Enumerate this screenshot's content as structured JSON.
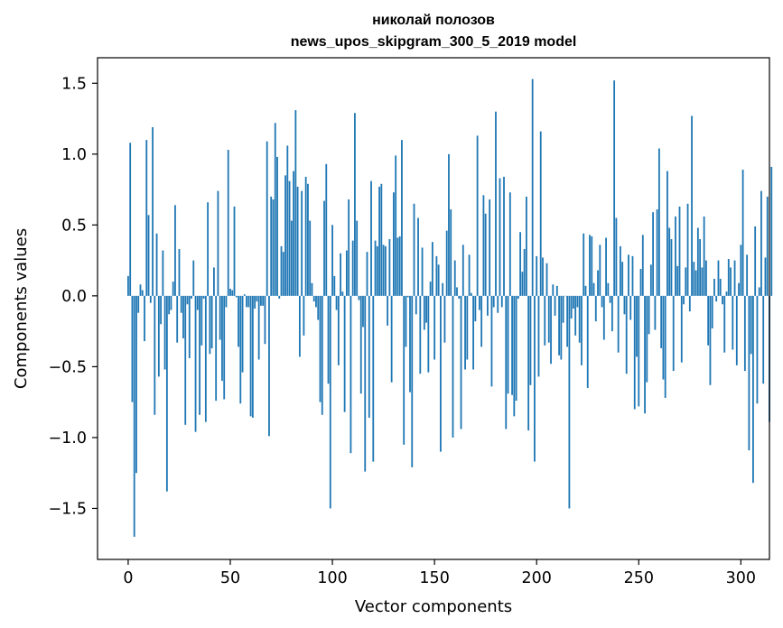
{
  "chart_data": {
    "type": "bar",
    "title": "николай полозов",
    "subtitle": "news_upos_skipgram_300_5_2019 model",
    "xlabel": "Vector components",
    "ylabel": "Components values",
    "xlim": [
      -15,
      314
    ],
    "ylim": [
      -1.86,
      1.68
    ],
    "xticks": [
      0,
      50,
      100,
      150,
      200,
      250,
      300
    ],
    "xtick_labels": [
      "0",
      "50",
      "100",
      "150",
      "200",
      "250",
      "300"
    ],
    "yticks": [
      -1.5,
      -1.0,
      -0.5,
      0.0,
      0.5,
      1.0,
      1.5
    ],
    "ytick_labels": [
      "−1.5",
      "−1.0",
      "−0.5",
      "0.0",
      "0.5",
      "1.0",
      "1.5"
    ],
    "grid": false,
    "bar_color": "#1f77b4",
    "values": [
      0.14,
      1.08,
      -0.75,
      -1.7,
      -1.25,
      -0.12,
      0.08,
      0.04,
      -0.32,
      1.1,
      0.57,
      -0.05,
      1.19,
      -0.84,
      0.44,
      -0.57,
      -0.2,
      0.32,
      -0.52,
      -1.38,
      -0.13,
      -0.1,
      0.1,
      0.64,
      -0.33,
      0.33,
      -0.12,
      -0.3,
      -0.91,
      -0.06,
      -0.44,
      -0.02,
      0.25,
      -0.96,
      -0.1,
      -0.84,
      -0.35,
      -0.02,
      -0.89,
      0.66,
      -0.41,
      -0.37,
      0.2,
      -0.74,
      0.74,
      -0.31,
      -0.6,
      -0.73,
      -0.08,
      1.03,
      0.05,
      0.04,
      0.63,
      -0.01,
      -0.36,
      -0.76,
      -0.54,
      0.01,
      -0.08,
      -0.08,
      -0.85,
      -0.86,
      -0.09,
      -0.04,
      -0.45,
      -0.07,
      -0.07,
      -0.34,
      1.09,
      -0.99,
      0.7,
      0.68,
      1.22,
      0.98,
      -0.02,
      0.35,
      0.31,
      0.85,
      1.06,
      0.81,
      0.53,
      0.88,
      1.31,
      0.77,
      -0.43,
      0.74,
      -0.28,
      0.84,
      0.79,
      0.53,
      0.09,
      -0.04,
      -0.08,
      -0.17,
      -0.75,
      -0.84,
      0.67,
      0.93,
      -0.62,
      -1.5,
      0.5,
      0.14,
      -0.1,
      -0.49,
      0.3,
      0.03,
      -0.82,
      0.32,
      0.68,
      -1.11,
      0.39,
      1.29,
      0.53,
      -0.03,
      -0.69,
      -0.22,
      -1.24,
      0.31,
      -0.86,
      0.81,
      -1.17,
      0.39,
      0.35,
      0.77,
      0.79,
      0.36,
      0.35,
      -0.21,
      0.4,
      -0.61,
      0.73,
      0.99,
      0.41,
      0.42,
      1.1,
      -1.05,
      -0.36,
      -0.01,
      -0.68,
      -1.21,
      0.65,
      -0.13,
      0.55,
      -0.55,
      0.34,
      -0.24,
      -0.19,
      -0.54,
      0.1,
      0.38,
      -0.45,
      0.28,
      0.22,
      -1.1,
      0.09,
      -0.33,
      0.46,
      1.0,
      0.61,
      -1.0,
      0.25,
      0.06,
      -0.02,
      -0.94,
      0.36,
      -0.52,
      -0.45,
      0.29,
      0.02,
      -0.52,
      -0.18,
      1.13,
      -0.1,
      -0.36,
      0.71,
      0.58,
      -0.14,
      0.68,
      -0.64,
      -0.08,
      1.3,
      -0.12,
      0.83,
      -0.08,
      0.84,
      -0.94,
      -0.69,
      0.73,
      -0.7,
      -0.85,
      -0.74,
      -0.02,
      0.45,
      0.17,
      0.33,
      0.7,
      -0.95,
      -0.63,
      1.53,
      -1.17,
      0.28,
      -0.57,
      1.16,
      0.27,
      -0.35,
      0.23,
      -0.33,
      -0.48,
      0.08,
      -0.14,
      0.07,
      -0.42,
      -0.45,
      -0.19,
      0.0,
      -0.36,
      -1.5,
      -0.16,
      -0.09,
      -0.28,
      -0.08,
      -0.33,
      -0.49,
      0.44,
      0.07,
      -0.65,
      0.43,
      0.42,
      0.09,
      -0.18,
      0.18,
      0.36,
      -0.08,
      -0.31,
      0.41,
      0.09,
      -0.05,
      -0.25,
      1.52,
      0.55,
      -0.4,
      0.35,
      0.24,
      -0.13,
      -0.55,
      0.29,
      -0.17,
      0.28,
      -0.8,
      -0.43,
      -0.78,
      0.19,
      0.43,
      -0.83,
      -0.61,
      -0.27,
      0.22,
      0.59,
      -0.24,
      0.61,
      1.04,
      -0.37,
      -0.59,
      -0.72,
      0.88,
      0.48,
      0.4,
      -0.53,
      0.56,
      0.21,
      0.63,
      -0.47,
      -0.06,
      0.2,
      0.65,
      -0.11,
      1.27,
      0.24,
      0.18,
      0.48,
      0.4,
      0.2,
      0.56,
      0.25,
      -0.35,
      -0.63,
      -0.23,
      0.12,
      -0.04,
      0.25,
      0.12,
      -0.06,
      -0.4,
      0.03,
      0.26,
      0.2,
      -0.38,
      0.25,
      -0.49,
      0.09,
      0.36,
      0.89,
      -0.53,
      0.29,
      -1.09,
      -0.41,
      -1.32,
      0.49,
      -0.76,
      0.06,
      0.74,
      -0.62,
      0.27,
      0.7,
      -0.89,
      0.91
    ]
  }
}
